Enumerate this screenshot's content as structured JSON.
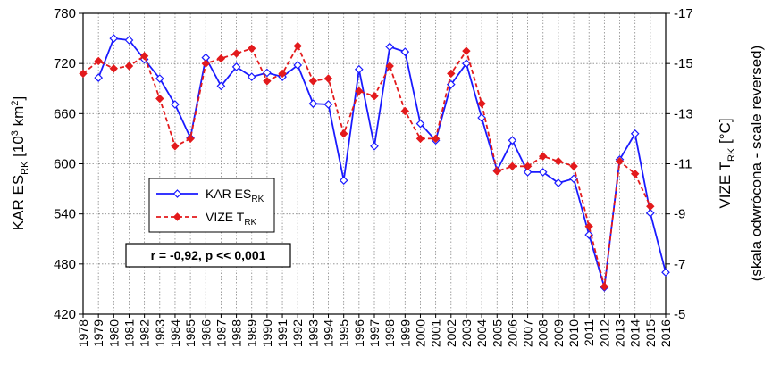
{
  "chart_data": {
    "type": "line",
    "x": [
      1978,
      1979,
      1980,
      1981,
      1982,
      1983,
      1984,
      1985,
      1986,
      1987,
      1988,
      1989,
      1990,
      1991,
      1992,
      1993,
      1994,
      1995,
      1996,
      1997,
      1998,
      1999,
      2000,
      2001,
      2002,
      2003,
      2004,
      2005,
      2006,
      2007,
      2008,
      2009,
      2010,
      2011,
      2012,
      2013,
      2014,
      2015,
      2016
    ],
    "xlim": [
      1978,
      2016
    ],
    "left_axis": {
      "label_main": "KAR ES",
      "label_sub": "RK",
      "label_unit_pre": " [10",
      "label_unit_sup1": "3",
      "label_unit_mid": " km",
      "label_unit_sup2": "2",
      "label_unit_post": "]",
      "ylim": [
        420,
        780
      ],
      "ticks": [
        "420",
        "480",
        "540",
        "600",
        "660",
        "720",
        "780"
      ]
    },
    "right_axis": {
      "label_main": "VIZE T",
      "label_sub": "RK",
      "label_unit": " [°C]",
      "label_note": "(skala odwrócona - scale reversed)",
      "reversed": true,
      "ylim": [
        -17,
        -5
      ],
      "ticks": [
        "-17",
        "-15",
        "-13",
        "-11",
        "-9",
        "-7",
        "-5"
      ]
    },
    "series": [
      {
        "name": "KAR ES",
        "name_sub": "RK",
        "axis": "left",
        "color": "#1a1aff",
        "style": "solid",
        "marker": "open-diamond",
        "points": [
          [
            1979,
            703
          ],
          [
            1980,
            750
          ],
          [
            1981,
            748
          ],
          [
            1982,
            725
          ],
          [
            1983,
            702
          ],
          [
            1984,
            671
          ],
          [
            1985,
            631
          ],
          [
            1986,
            727
          ],
          [
            1987,
            693
          ],
          [
            1988,
            716
          ],
          [
            1989,
            704
          ],
          [
            1990,
            709
          ],
          [
            1991,
            704
          ],
          [
            1992,
            718
          ],
          [
            1993,
            672
          ],
          [
            1994,
            671
          ],
          [
            1995,
            580
          ],
          [
            1996,
            713
          ],
          [
            1997,
            621
          ],
          [
            1998,
            740
          ],
          [
            1999,
            734
          ],
          [
            2000,
            648
          ],
          [
            2001,
            628
          ],
          [
            2002,
            695
          ],
          [
            2003,
            720
          ],
          [
            2004,
            655
          ],
          [
            2005,
            592
          ],
          [
            2006,
            628
          ],
          [
            2007,
            590
          ],
          [
            2008,
            590
          ],
          [
            2009,
            577
          ],
          [
            2010,
            582
          ],
          [
            2011,
            515
          ],
          [
            2012,
            452
          ],
          [
            2013,
            605
          ],
          [
            2014,
            636
          ],
          [
            2015,
            541
          ],
          [
            2016,
            470
          ]
        ]
      },
      {
        "name": "VIZE T",
        "name_sub": "RK",
        "axis": "right",
        "color": "#e31a1c",
        "style": "dashed",
        "marker": "filled-diamond",
        "points": [
          [
            1978,
            -14.6
          ],
          [
            1979,
            -15.1
          ],
          [
            1980,
            -14.8
          ],
          [
            1981,
            -14.9
          ],
          [
            1982,
            -15.3
          ],
          [
            1983,
            -13.6
          ],
          [
            1984,
            -11.7
          ],
          [
            1985,
            -12.0
          ],
          [
            1986,
            -15.0
          ],
          [
            1987,
            -15.2
          ],
          [
            1988,
            -15.4
          ],
          [
            1989,
            -15.6
          ],
          [
            1990,
            -14.3
          ],
          [
            1991,
            -14.6
          ],
          [
            1992,
            -15.7
          ],
          [
            1993,
            -14.3
          ],
          [
            1994,
            -14.4
          ],
          [
            1995,
            -12.2
          ],
          [
            1996,
            -13.9
          ],
          [
            1997,
            -13.7
          ],
          [
            1998,
            -14.9
          ],
          [
            1999,
            -13.1
          ],
          [
            2000,
            -12.0
          ],
          [
            2001,
            -12.0
          ],
          [
            2002,
            -14.6
          ],
          [
            2003,
            -15.5
          ],
          [
            2004,
            -13.4
          ],
          [
            2005,
            -10.7
          ],
          [
            2006,
            -10.9
          ],
          [
            2007,
            -10.9
          ],
          [
            2008,
            -11.3
          ],
          [
            2009,
            -11.1
          ],
          [
            2010,
            -10.9
          ],
          [
            2011,
            -8.5
          ],
          [
            2012,
            -6.1
          ],
          [
            2013,
            -11.1
          ],
          [
            2014,
            -10.6
          ],
          [
            2015,
            -9.3
          ]
        ]
      }
    ],
    "annotation": "r = -0,92, p << 0,001",
    "grid": true,
    "legend_position": "center-left"
  }
}
